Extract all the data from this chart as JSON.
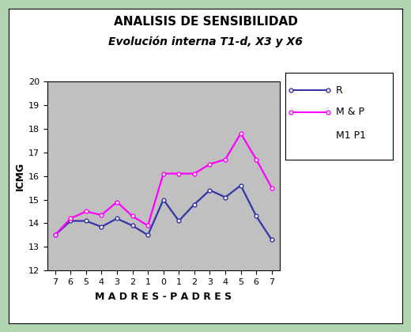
{
  "title_line1": "ANALISIS DE SENSIBILIDAD",
  "title_line2": "Evolución interna T1-d, X3 y X6",
  "xlabel": "M A D R E S - P A D R E S",
  "ylabel": "ICMG",
  "x_positions": [
    0,
    1,
    2,
    3,
    4,
    5,
    6,
    7,
    8,
    9,
    10,
    11,
    12,
    13,
    14
  ],
  "x_tick_labels": [
    "7",
    "6",
    "5",
    "4",
    "3",
    "2",
    "1",
    "0",
    "1",
    "2",
    "3",
    "4",
    "5",
    "6",
    "7"
  ],
  "R_values": [
    13.5,
    14.1,
    14.1,
    13.85,
    14.2,
    13.9,
    13.5,
    15.0,
    14.1,
    14.8,
    15.4,
    15.1,
    15.6,
    14.3,
    13.3
  ],
  "MP_values": [
    13.5,
    14.2,
    14.5,
    14.35,
    14.9,
    14.3,
    13.9,
    16.1,
    16.1,
    16.1,
    16.5,
    16.7,
    17.8,
    16.7,
    15.5
  ],
  "R_color": "#3333AA",
  "MP_color": "#FF00FF",
  "ylim_min": 12,
  "ylim_max": 20,
  "y_ticks": [
    12,
    13,
    14,
    15,
    16,
    17,
    18,
    19,
    20
  ],
  "plot_bg_color": "#C0C0C0",
  "fig_bg_color": "#FFFFFF",
  "border_color": "#B0D4B0",
  "legend_labels": [
    "R",
    "M & P",
    "M1 P1"
  ],
  "marker": "o",
  "marker_size": 3.5,
  "linewidth": 1.6
}
